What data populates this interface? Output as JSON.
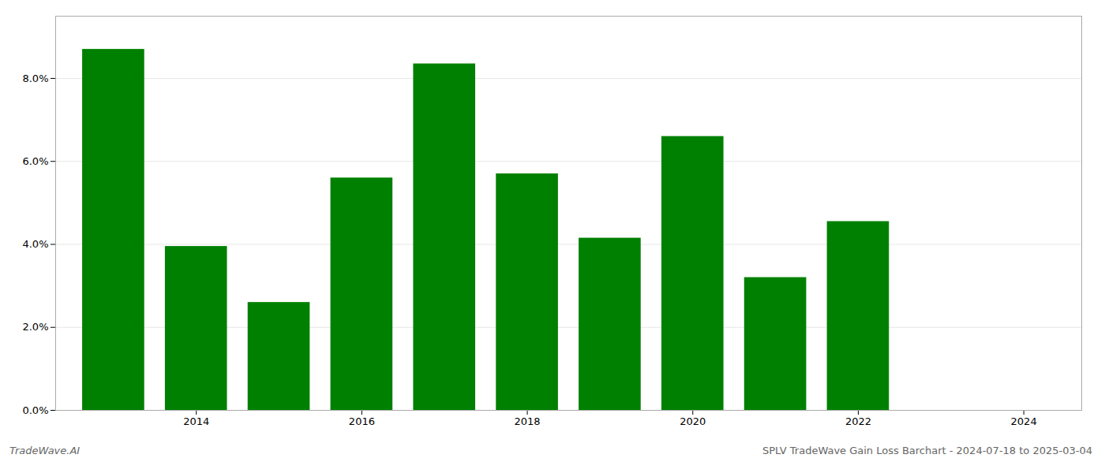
{
  "chart_data": {
    "type": "bar",
    "title": "SPLV TradeWave Gain Loss Barchart - 2024-07-18 to 2025-03-04",
    "annotations": [
      "TradeWave.AI"
    ],
    "x": [
      2013,
      2014,
      2015,
      2016,
      2017,
      2018,
      2019,
      2020,
      2021,
      2022,
      2023
    ],
    "values": [
      0.087,
      0.0395,
      0.026,
      0.056,
      0.0835,
      0.057,
      0.0415,
      0.066,
      0.032,
      0.0455,
      0.0
    ],
    "color": "#008000",
    "xlim": [
      2012.3,
      2024.7
    ],
    "xticks": [
      2014,
      2016,
      2018,
      2020,
      2022,
      2024
    ],
    "ylim": [
      0.0,
      0.095
    ],
    "yticks": [
      {
        "value": 0.0,
        "label": "0.0%"
      },
      {
        "value": 0.02,
        "label": "2.0%"
      },
      {
        "value": 0.04,
        "label": "4.0%"
      },
      {
        "value": 0.06,
        "label": "6.0%"
      },
      {
        "value": 0.08,
        "label": "8.0%"
      }
    ],
    "grid": true
  }
}
